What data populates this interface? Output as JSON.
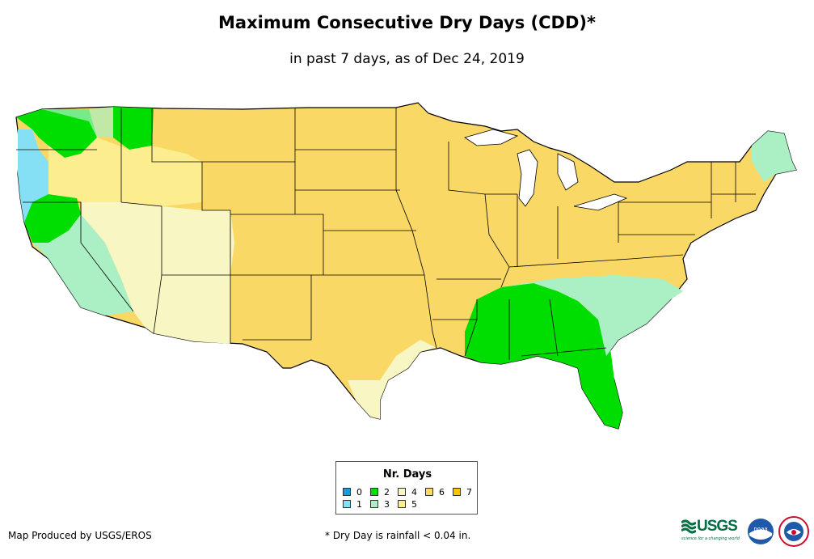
{
  "title": "Maximum Consecutive Dry Days (CDD)*",
  "subtitle": "in past 7 days, as of Dec 24, 2019",
  "legend": {
    "title": "Nr. Days",
    "items": [
      {
        "label": "0",
        "color": "#1a9be0"
      },
      {
        "label": "1",
        "color": "#86e0f5"
      },
      {
        "label": "2",
        "color": "#00dd00"
      },
      {
        "label": "3",
        "color": "#aaf0c4"
      },
      {
        "label": "4",
        "color": "#f8f6c2"
      },
      {
        "label": "5",
        "color": "#fcee8e"
      },
      {
        "label": "6",
        "color": "#fad865"
      },
      {
        "label": "7",
        "color": "#f5c600"
      }
    ]
  },
  "footer": {
    "credit": "Map Produced by USGS/EROS",
    "note": "* Dry Day is rainfall < 0.04 in."
  },
  "logos": {
    "usgs": "USGS",
    "usgs_tagline": "science for a changing world",
    "noaa": "noaa",
    "nws_icon": "nws-seal-icon"
  },
  "map_colors": {
    "background": "#ffffff",
    "state_border": "#000000",
    "dominant": "#fad865"
  }
}
